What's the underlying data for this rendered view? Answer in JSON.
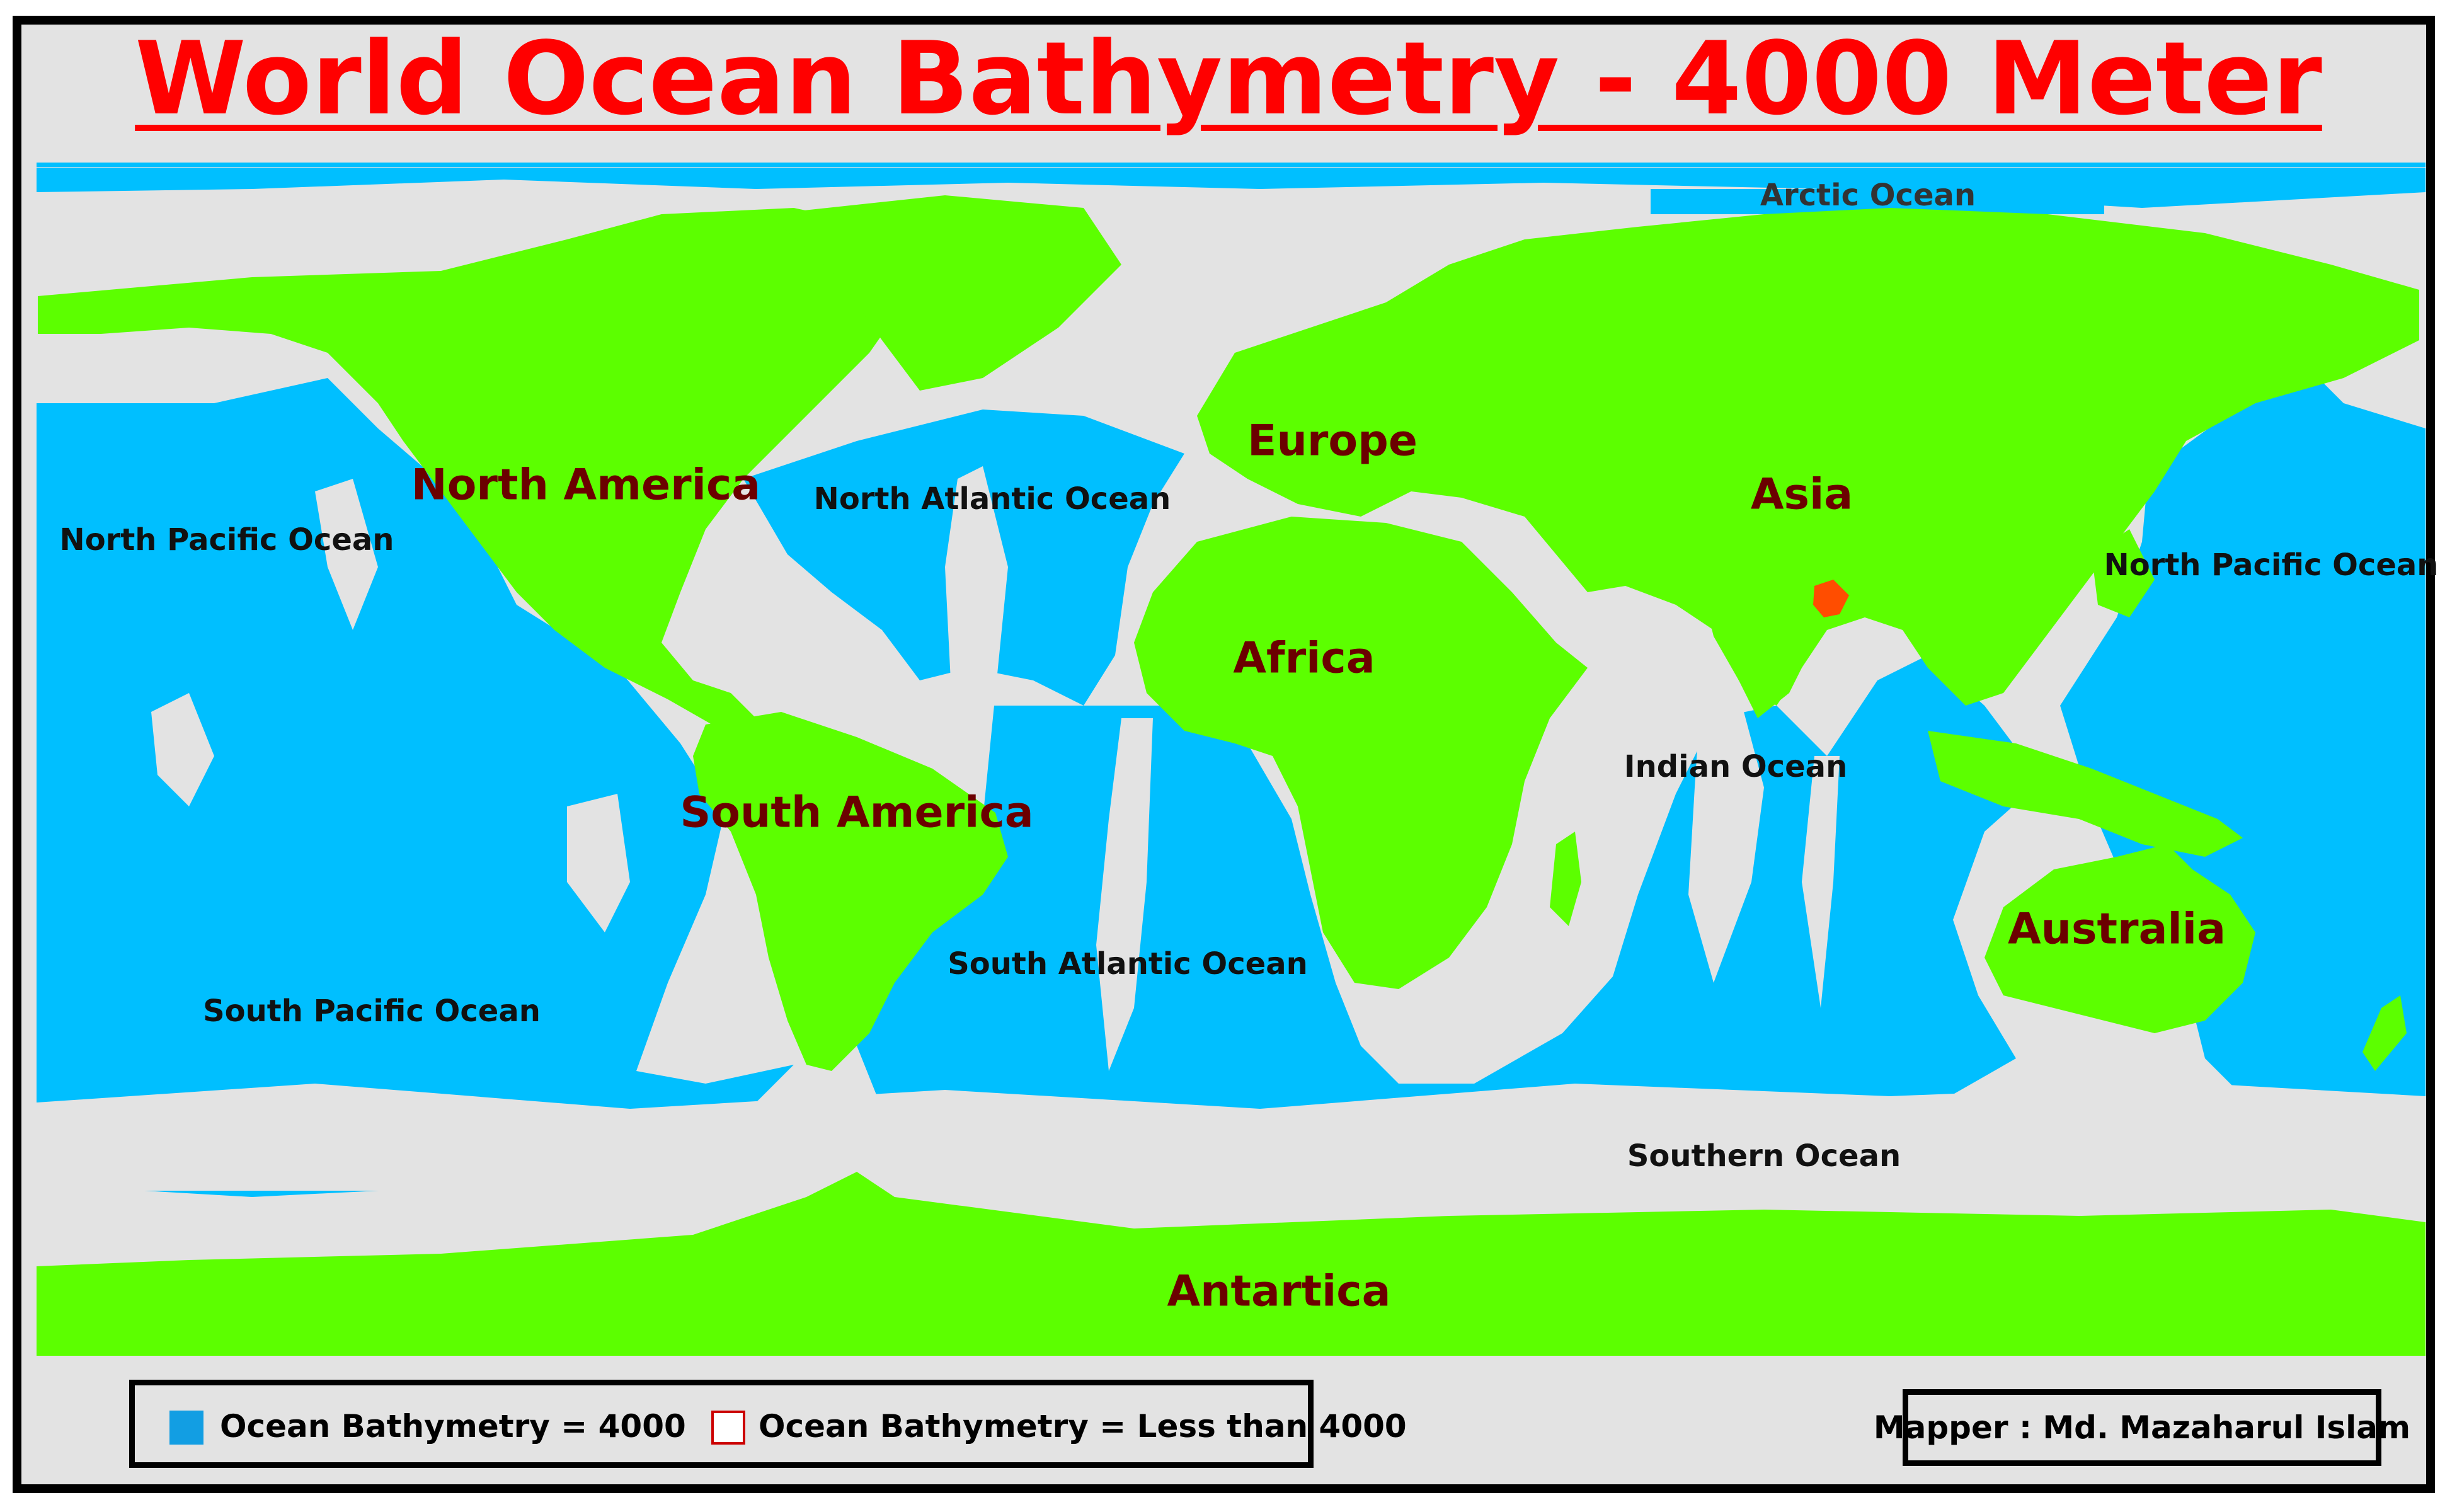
{
  "title": "World Ocean Bathymetry - 4000 Meter",
  "colors": {
    "land": "#5cff00",
    "ocean_deep": "#00bfff",
    "shelf": "#e3e3e3",
    "highlight_country": "#ff4d00",
    "title": "#ff0000",
    "continent_label": "#6b0000"
  },
  "continents": [
    "North America",
    "Europe",
    "Asia",
    "Africa",
    "South America",
    "Australia",
    "Antartica"
  ],
  "oceans": [
    "Arctic Ocean",
    "North Atlantic Ocean",
    "North Pacific Ocean",
    "North Pacific Ocean",
    "Indian Ocean",
    "South Atlantic Ocean",
    "South Pacific Ocean",
    "Southern Ocean"
  ],
  "legend": {
    "item_deep": "Ocean Bathymetry = 4000",
    "item_shallow": "Ocean Bathymetry = Less than 4000"
  },
  "mapper": "Mapper : Md. Mazaharul Islam"
}
